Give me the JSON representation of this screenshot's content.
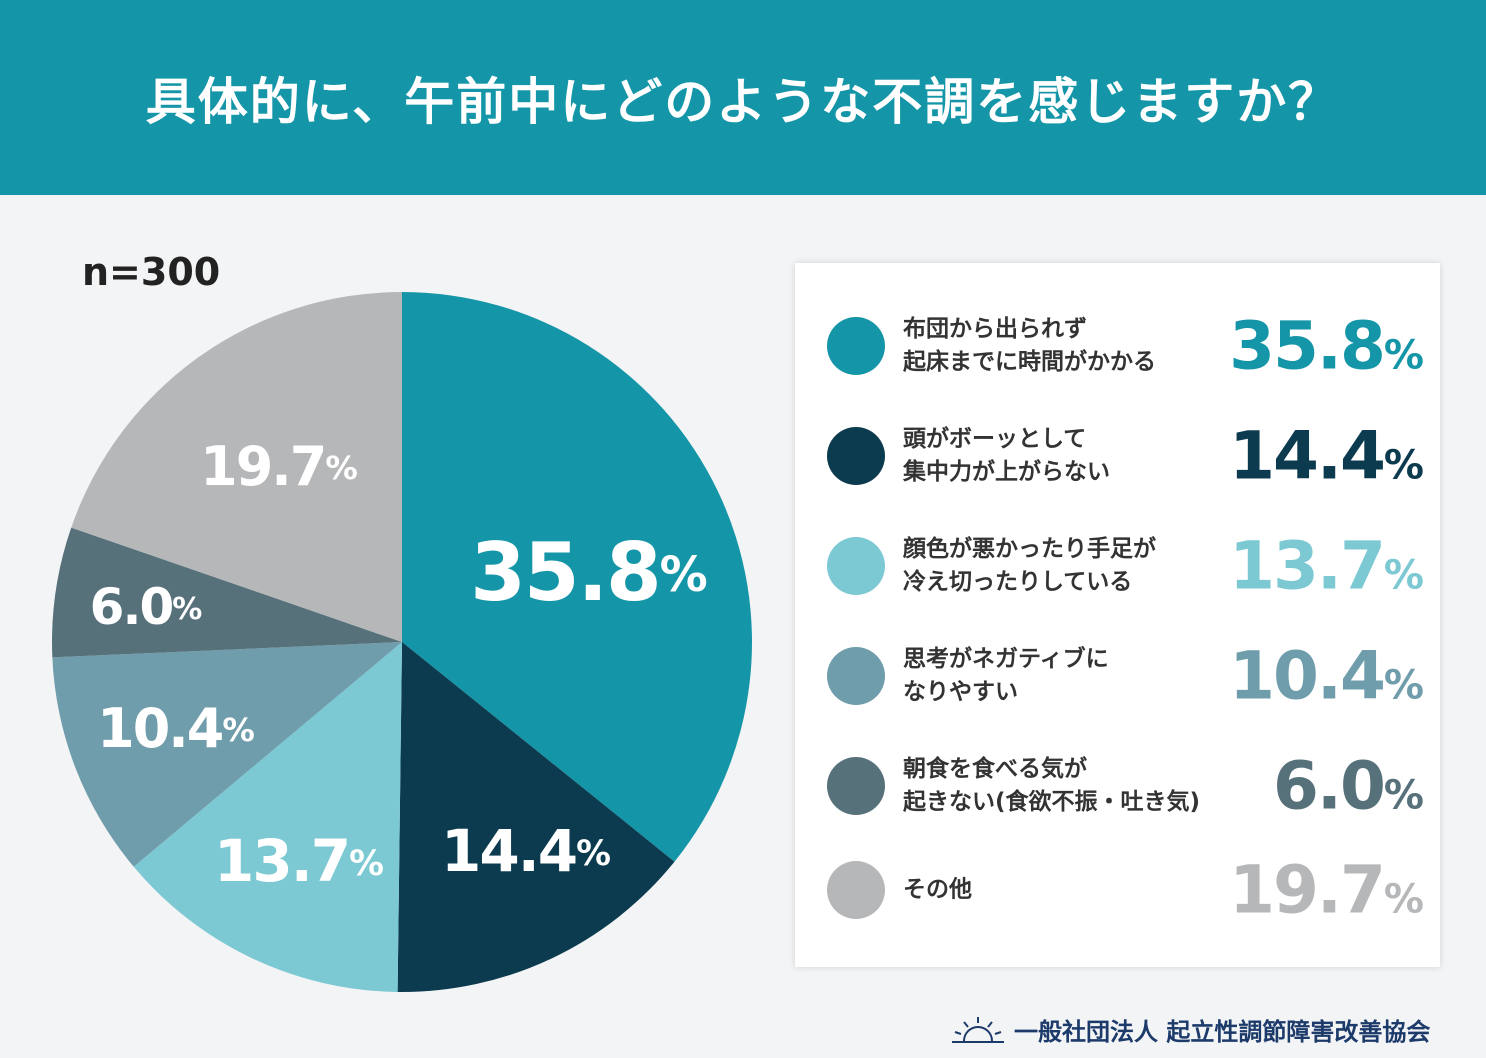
{
  "title": "具体的に、午前中にどのような不調を感じますか？",
  "sample": "n=300",
  "footer": "一般社団法人 起立性調節障害改善協会",
  "chart_data": {
    "type": "pie",
    "start": "top, clockwise",
    "categories": [
      "布団から出られず\n起床までに時間がかかる",
      "頭がボーッとして\n集中力が上がらない",
      "顔色が悪かったり手足が\n冷え切ったりしている",
      "思考がネガティブに\nなりやすい",
      "朝食を食べる気が\n起きない(食欲不振・吐き気)",
      "その他"
    ],
    "values": [
      35.8,
      14.4,
      13.7,
      10.4,
      6.0,
      19.7
    ],
    "labels": [
      "35.8",
      "14.4",
      "13.7",
      "10.4",
      "6.0",
      "19.7"
    ],
    "unit": "%",
    "colors": [
      "#1596a8",
      "#0c3a4e",
      "#7cc9d4",
      "#6f9dab",
      "#57717b",
      "#b6b7b9"
    ],
    "legend": "right"
  }
}
